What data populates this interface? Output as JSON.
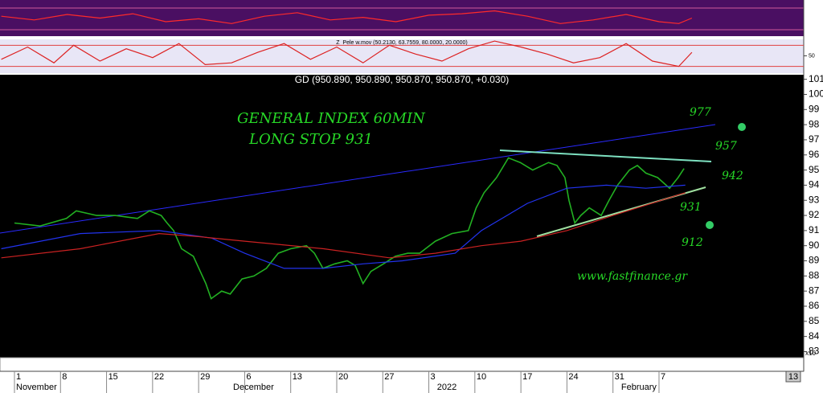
{
  "chart_data": [
    {
      "type": "line",
      "title": "GD (950.890, 950.890, 950.870, 950.870, +0.030)",
      "xlim": [
        -2.2,
        120
      ],
      "ylim": [
        82.6,
        101.3
      ],
      "yticks": [
        101,
        100,
        99,
        98,
        97,
        96,
        95,
        94,
        93,
        92,
        91,
        90,
        89,
        88,
        87,
        86,
        85,
        84,
        83
      ],
      "xticks": [
        {
          "value": 0,
          "label": "1"
        },
        {
          "value": 7,
          "label": "8"
        },
        {
          "value": 14,
          "label": "15"
        },
        {
          "value": 21,
          "label": "22"
        },
        {
          "value": 28,
          "label": "29"
        },
        {
          "value": 35,
          "label": "6"
        },
        {
          "value": 42,
          "label": "13"
        },
        {
          "value": 49,
          "label": "20"
        },
        {
          "value": 56,
          "label": "27"
        },
        {
          "value": 63,
          "label": "3"
        },
        {
          "value": 70,
          "label": "10"
        },
        {
          "value": 77,
          "label": "17"
        },
        {
          "value": 84,
          "label": "24"
        },
        {
          "value": 91,
          "label": "31"
        },
        {
          "value": 98,
          "label": "7"
        }
      ],
      "month_labels": [
        {
          "value": 0,
          "label": "November"
        },
        {
          "value": 33,
          "label": "December"
        },
        {
          "value": 64,
          "label": "2022"
        },
        {
          "value": 92,
          "label": "February"
        }
      ],
      "series": [
        {
          "color": "#22b022",
          "x": [
            0,
            3.9,
            7.9,
            9.4,
            12.5,
            15.3,
            18.7,
            20.5,
            22.3,
            23.2,
            24.2,
            25.4,
            27.2,
            29.1,
            29.9,
            31.5,
            32.8,
            34.6,
            36.4,
            38.3,
            40.1,
            42,
            44.4,
            45.6,
            46.9,
            48.7,
            50.6,
            51.8,
            53,
            54.2,
            56.1,
            57.9,
            59.8,
            61.6,
            64,
            66.5,
            69,
            70.2,
            71.4,
            73.3,
            75.1,
            76.9,
            78.8,
            81.2,
            82.5,
            83.7,
            84.3,
            85.2,
            86.1,
            87.4,
            89.2,
            90.4,
            91.7,
            93.5,
            94.7,
            96,
            97.8,
            99.6,
            100.9,
            101.8
          ],
          "values": [
            91.5,
            91.3,
            91.8,
            92.3,
            92,
            92,
            91.8,
            92.3,
            92,
            91.5,
            91,
            89.8,
            89.3,
            87.5,
            86.5,
            87,
            86.8,
            87.8,
            88,
            88.5,
            89.5,
            89.8,
            90,
            89.5,
            88.5,
            88.8,
            89,
            88.7,
            87.5,
            88.3,
            88.8,
            89.3,
            89.5,
            89.5,
            90.3,
            90.8,
            91,
            92.5,
            93.5,
            94.5,
            95.8,
            95.5,
            95,
            95.5,
            95.3,
            94.5,
            93,
            91.5,
            92,
            92.5,
            92,
            93,
            94,
            95,
            95.3,
            94.8,
            94.5,
            93.8,
            94.5,
            95.1
          ]
        },
        {
          "color": "#2233ee",
          "x": [
            -2,
            10,
            22,
            30,
            35,
            41,
            47,
            53,
            59,
            67,
            71,
            78,
            84,
            90,
            96,
            102
          ],
          "values": [
            89.8,
            90.8,
            91,
            90.5,
            89.5,
            88.5,
            88.5,
            88.8,
            89,
            89.5,
            91,
            92.8,
            93.8,
            94,
            93.8,
            94
          ]
        },
        {
          "color": "#cc2222",
          "x": [
            -2,
            10,
            22,
            28,
            35,
            47,
            57,
            64,
            71,
            77,
            84,
            91,
            102
          ],
          "values": [
            89.2,
            89.8,
            90.8,
            90.6,
            90.3,
            89.8,
            89.2,
            89.5,
            90,
            90.3,
            91,
            92,
            93.5
          ]
        }
      ],
      "annotations": [
        "GENERAL INDEX 60MIN",
        "LONG STOP 931",
        "977",
        "957",
        "942",
        "931",
        "912",
        "www.fastfinance.gr"
      ],
      "volume_scale": "x10",
      "last_label": "13"
    },
    {
      "type": "line",
      "title": "Z_Pele w.mov (50.2130, 63.7559, 80.0000, 20.0000)",
      "ylim": [
        0.8,
        96.8
      ],
      "yticks": [
        50
      ],
      "levels": [
        80,
        20
      ],
      "series": [
        {
          "color": "#dd2222",
          "x": [
            -2,
            2,
            6,
            9,
            13,
            17,
            21,
            25,
            29,
            33,
            37,
            41,
            45,
            49,
            53,
            57,
            61,
            65,
            69,
            73,
            77,
            81,
            85,
            89,
            93,
            97,
            101,
            103
          ],
          "values": [
            40,
            75,
            30,
            80,
            35,
            70,
            45,
            85,
            25,
            30,
            60,
            85,
            40,
            75,
            30,
            80,
            55,
            35,
            70,
            92,
            75,
            55,
            30,
            45,
            85,
            35,
            20,
            60
          ]
        }
      ]
    },
    {
      "type": "line",
      "ylim": [
        0,
        100
      ],
      "series": [
        {
          "color": "#ff2a2a",
          "x": [
            -2,
            3,
            8,
            13,
            18,
            23,
            28,
            33,
            38,
            43,
            48,
            53,
            58,
            63,
            68,
            73,
            78,
            83,
            88,
            93,
            98,
            101,
            103
          ],
          "values": [
            55,
            45,
            60,
            50,
            62,
            40,
            48,
            35,
            55,
            65,
            45,
            52,
            40,
            58,
            62,
            70,
            55,
            35,
            45,
            60,
            40,
            35,
            50
          ]
        }
      ]
    }
  ]
}
